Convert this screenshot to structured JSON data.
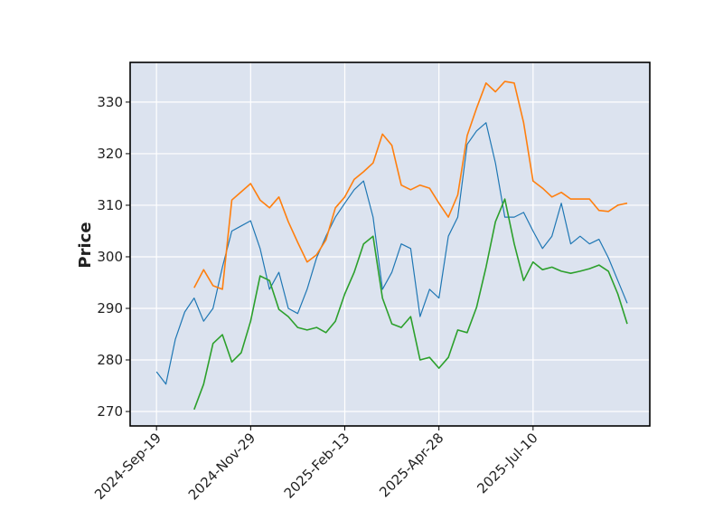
{
  "chart_data": {
    "type": "line",
    "title": "",
    "xlabel": "",
    "ylabel": "Price",
    "x_tick_labels": [
      "2024-Sep-19",
      "2024-Nov-29",
      "2025-Feb-13",
      "2025-Apr-28",
      "2025-Jul-10"
    ],
    "x_tick_index": [
      0,
      50,
      100,
      150,
      200
    ],
    "y_ticks": [
      270,
      280,
      290,
      300,
      310,
      320,
      330
    ],
    "xlim": [
      -14,
      262
    ],
    "ylim": [
      267.2,
      337.7
    ],
    "grid": true,
    "background": "#dce3ef",
    "series": [
      {
        "color": "#1f77b4",
        "start_index": 0,
        "step": 5,
        "values": [
          277.7,
          275.3,
          284,
          289.3,
          292,
          287.5,
          290,
          298,
          305,
          306,
          307,
          301.6,
          293.7,
          297,
          290,
          289,
          293.7,
          299.8,
          304,
          307.7,
          310.4,
          313,
          314.7,
          307.7,
          293.7,
          297,
          302.5,
          301.6,
          288.4,
          293.7,
          292,
          304,
          307.7,
          321.8,
          324.4,
          326,
          318.2,
          307.7,
          307.7,
          308.6,
          305,
          301.6,
          304,
          310.4,
          302.5,
          304,
          302.5,
          303.4,
          299.8,
          295.4,
          291
        ]
      },
      {
        "color": "#ff7f0e",
        "start_index": 20,
        "step": 5,
        "values": [
          294,
          297.5,
          294.4,
          293.7,
          311,
          312.6,
          314.2,
          311,
          309.5,
          311.6,
          306.8,
          302.8,
          299,
          300.4,
          303.3,
          309.5,
          311.6,
          315,
          316.5,
          318.2,
          323.8,
          321.6,
          313.9,
          313,
          313.9,
          313.3,
          310.4,
          307.7,
          312,
          323.5,
          328.8,
          333.7,
          332,
          334,
          333.7,
          326,
          314.7,
          313.3,
          311.6,
          312.5,
          311.2,
          311.2,
          311.2,
          309,
          308.8,
          310,
          310.4
        ]
      },
      {
        "color": "#2ca02c",
        "start_index": 20,
        "step": 5,
        "values": [
          270.4,
          275.3,
          283.2,
          284.9,
          279.6,
          281.4,
          287.5,
          296.3,
          295.4,
          289.8,
          288.4,
          286.3,
          285.8,
          286.3,
          285.3,
          287.5,
          292.8,
          297,
          302.5,
          304,
          292,
          287,
          286.3,
          288.4,
          280,
          280.5,
          278.4,
          280.5,
          285.8,
          285.3,
          290.2,
          298,
          306.8,
          311.2,
          302.5,
          295.4,
          299,
          297.5,
          298,
          297.2,
          296.8,
          297.2,
          297.7,
          298.4,
          297.2,
          292.8,
          287
        ]
      }
    ]
  }
}
